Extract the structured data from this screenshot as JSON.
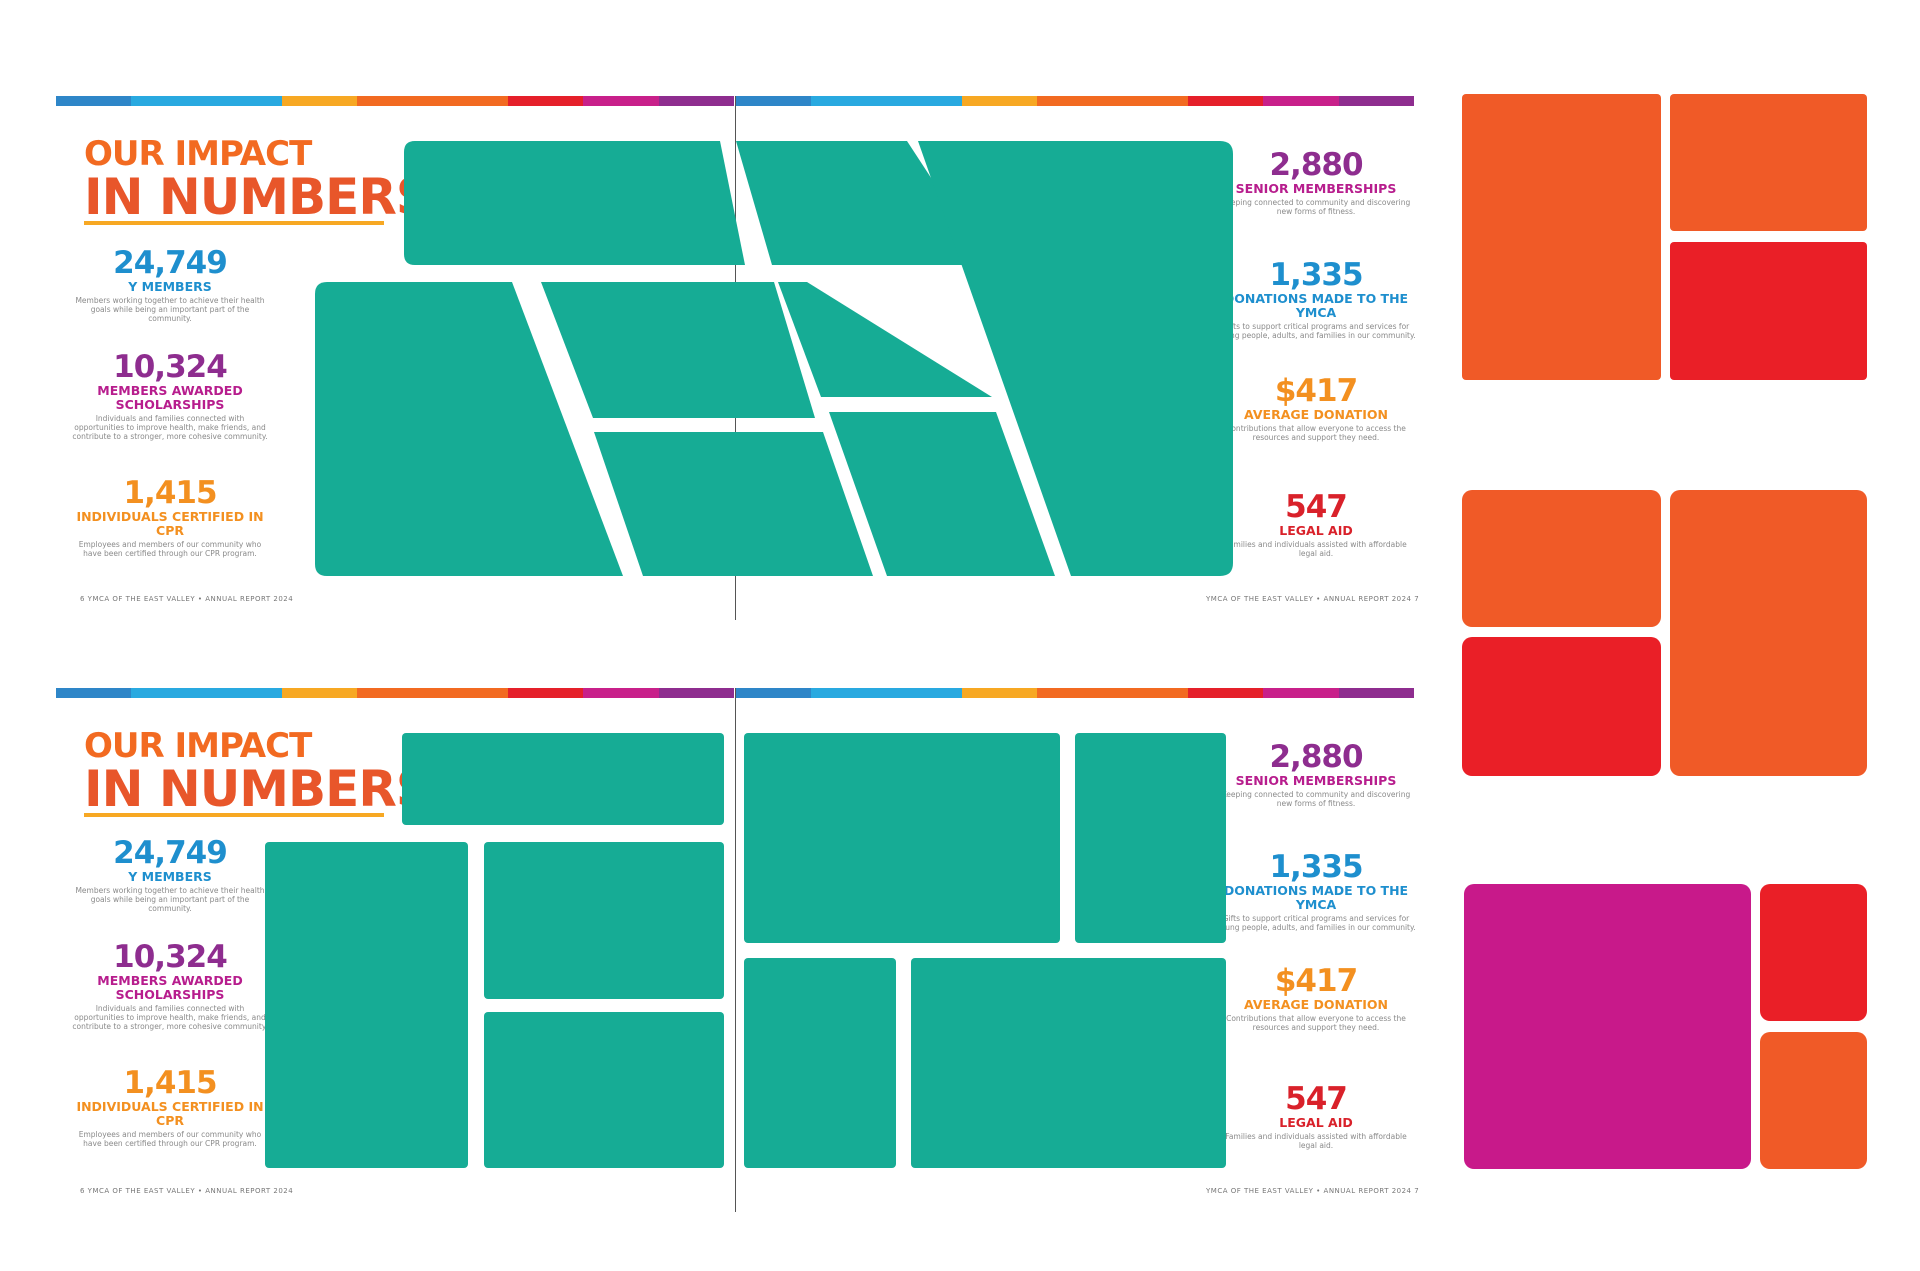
{
  "heading": {
    "line1": "OUR IMPACT",
    "line2": "IN NUMBERS"
  },
  "stats_left": [
    {
      "number": "24,749",
      "label": "Y MEMBERS",
      "desc": "Members working together to achieve their health goals while being an important part of the community.",
      "color": "#1e8fce"
    },
    {
      "number": "10,324",
      "label": "MEMBERS AWARDED SCHOLARSHIPS",
      "desc": "Individuals and families connected with opportunities to improve health, make friends, and contribute to a stronger, more cohesive community.",
      "color": "#b71d8d"
    },
    {
      "number": "1,415",
      "label": "INDIVIDUALS CERTIFIED IN CPR",
      "desc": "Employees and members of our community who have been certified through our CPR program.",
      "color": "#f39020"
    }
  ],
  "stats_right": [
    {
      "number": "2,880",
      "label": "SENIOR MEMBERSHIPS",
      "desc": "Keeping connected to community and discovering new forms of fitness.",
      "color": "#8e2d8f"
    },
    {
      "number": "1,335",
      "label": "DONATIONS MADE TO THE YMCA",
      "desc": "Gifts to support critical programs and services for young people, adults, and families in our community.",
      "color": "#1e8fce"
    },
    {
      "number": "$417",
      "label": "AVERAGE DONATION",
      "desc": "Contributions that allow everyone to access the resources and support they need.",
      "color": "#f39020"
    },
    {
      "number": "547",
      "label": "LEGAL AID",
      "desc": "Families and individuals assisted with affordable legal aid.",
      "color": "#d9212a"
    }
  ],
  "folio": {
    "left": "6   YMCA OF THE EAST VALLEY • ANNUAL REPORT 2024",
    "right": "YMCA OF THE EAST VALLEY • ANNUAL REPORT 2024   7"
  },
  "colors": {
    "stripe": [
      "#2e86c8",
      "#29a9e0",
      "#f7a823",
      "#f26a21",
      "#f26a21",
      "#e5202a",
      "#c8208a",
      "#8e2d8f"
    ],
    "teal": "#16ac95",
    "tile_orange": "#f05a27",
    "tile_red": "#ea1f27",
    "tile_magenta": "#c8198a"
  }
}
